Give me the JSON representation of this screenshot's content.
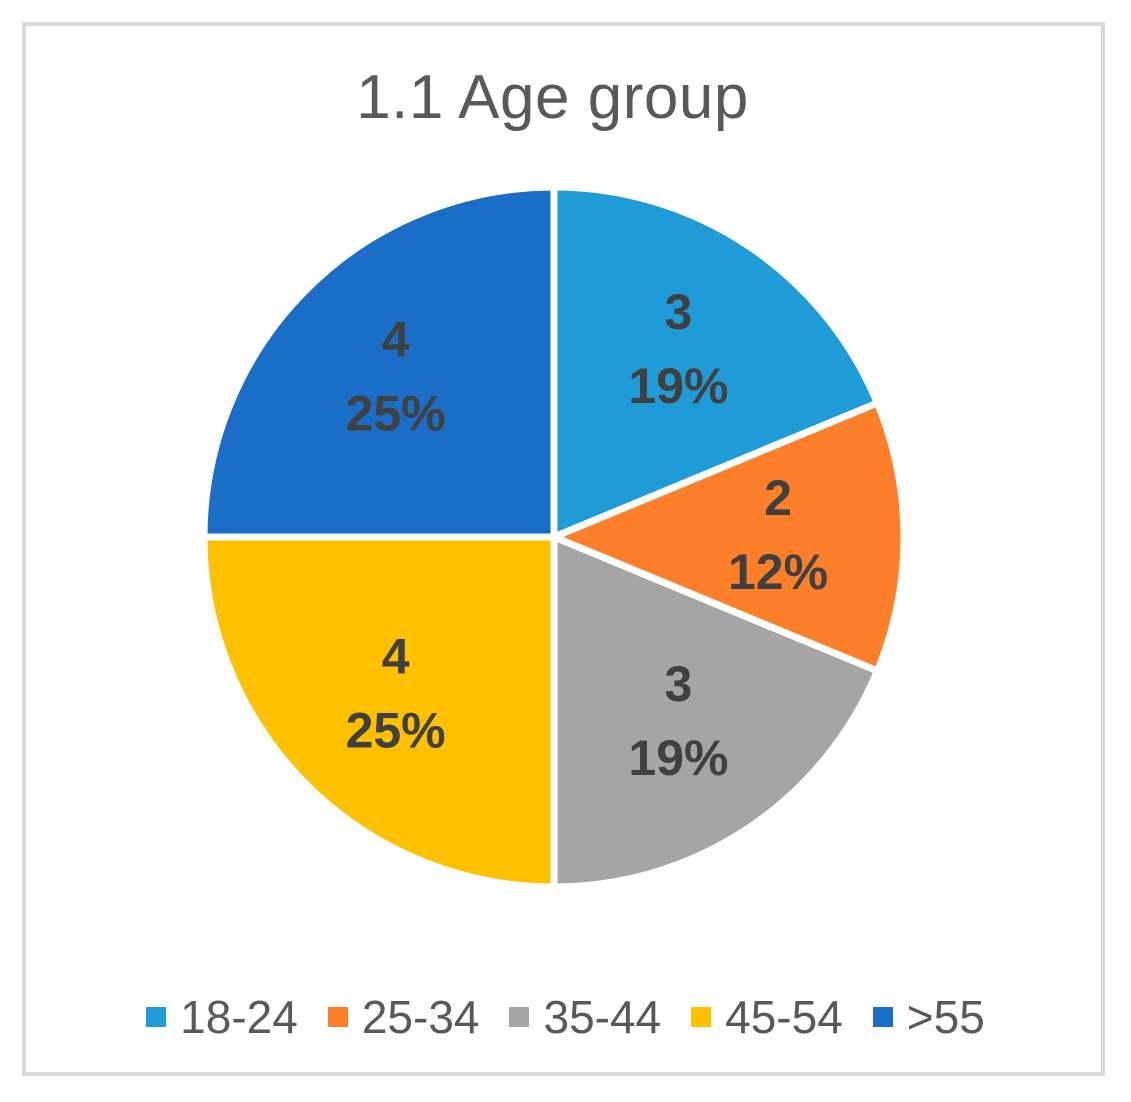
{
  "chart_data": {
    "type": "pie",
    "title": "1.1 Age group",
    "categories": [
      "18-24",
      "25-34",
      "35-44",
      "45-54",
      ">55"
    ],
    "values": [
      3,
      2,
      3,
      4,
      4
    ],
    "percent_labels": [
      "19%",
      "12%",
      "19%",
      "25%",
      "25%"
    ],
    "colors": [
      "#1f9bd7",
      "#fe7f2a",
      "#a5a5a5",
      "#ffc000",
      "#1a6ec7"
    ],
    "start_angle": "12 o'clock",
    "direction": "clockwise",
    "legend_position": "bottom"
  }
}
